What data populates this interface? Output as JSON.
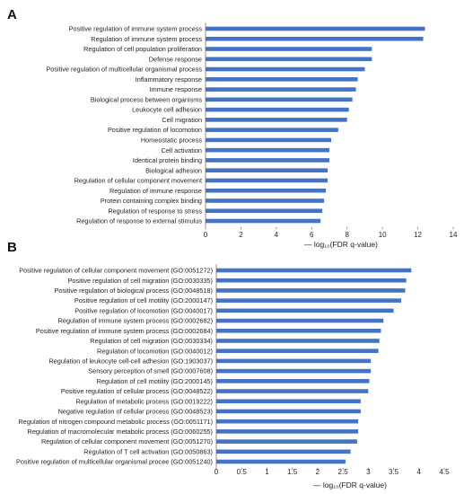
{
  "chart_data": [
    {
      "type": "bar",
      "orientation": "horizontal",
      "panel_label": "A",
      "categories": [
        "Positive regulation of immune system process",
        "Regulation of immune system process",
        "Regulation of cell population proliferation",
        "Defense response",
        "Positive regulation of multicellular organismal process",
        "Inflammatory response",
        "Immune response",
        "Biological process between organisms",
        "Leukocyte cell adhesion",
        "Cell migration",
        "Positive regulation of locomotion",
        "Homeostatic process",
        "Cell activation",
        "Identical protein binding",
        "Biological adhesion",
        "Regulation of cellular component movement",
        "Regulation of immune response",
        "Protein containing complex binding",
        "Regulation of response to stress",
        "Regulation of response to external stimulus"
      ],
      "values": [
        12.4,
        12.3,
        9.4,
        9.4,
        9.0,
        8.6,
        8.5,
        8.3,
        8.1,
        8.0,
        7.5,
        7.1,
        7.0,
        7.0,
        6.9,
        6.9,
        6.8,
        6.7,
        6.6,
        6.5
      ],
      "xticks": [
        "0",
        "2",
        "4",
        "6",
        "8",
        "10",
        "12",
        "14"
      ],
      "xlim": [
        0,
        14
      ],
      "xlabel": "— log₁₀(FDR q-value)",
      "color": "#4472c4",
      "grid": false
    },
    {
      "type": "bar",
      "orientation": "horizontal",
      "panel_label": "B",
      "categories": [
        "Positive regulation of cellular component movement (GO:0051272)",
        "Positive regulation of cell migration (GO:0030335)",
        "Positive regulation of biological process (GO:0048518)",
        "Positive regulation of cell motility (GO:2000147)",
        "Positive regulation of locomotion (GO:0040017)",
        "Regulation of immune system process (GO:0002682)",
        "Positive regulation of immune system process (GO:0002684)",
        "Regulation of cell migration (GO:0030334)",
        "Regulation of locomotion (GO:0040012)",
        "Regulation of leukocyte cell-cell adhesion (GO:1903037)",
        "Sensory perception of smell (GO:0007608)",
        "Regulation of cell motility (GO:2000145)",
        "Positive regulation of cellular process (GO:0048522)",
        "Regulation of metabolic process (GO:0019222)",
        "Negative regulation of cellular process (GO:0048523)",
        "Regulation of nitrogen compound metabolic process (GO:0051171)",
        "Regulation of macromolecular metabolic process (GO:0060255)",
        "Regulation of cellular component movement (GO:0051270)",
        "Regulation of T cell activation (GO:0050863)",
        "Positive regulation of multicellular organismal procee (GO:0051240)"
      ],
      "values": [
        3.85,
        3.75,
        3.73,
        3.65,
        3.5,
        3.3,
        3.25,
        3.22,
        3.2,
        3.05,
        3.05,
        3.02,
        3.0,
        2.85,
        2.85,
        2.8,
        2.8,
        2.78,
        2.65,
        2.55
      ],
      "xticks": [
        "0",
        "0.5",
        "1",
        "1.5",
        "2",
        "2.5",
        "3",
        "3.5",
        "4",
        "4.5"
      ],
      "xlim": [
        0,
        4.5
      ],
      "xlabel": "— log₁₀(FDR q-value)",
      "color": "#4472c4",
      "grid": false
    }
  ]
}
